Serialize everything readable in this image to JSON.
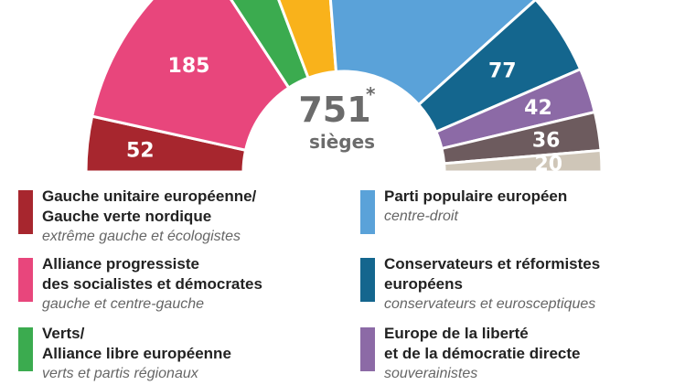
{
  "chart_data": {
    "type": "parliament-hemicycle",
    "total_seats": "751",
    "total_marker": "*",
    "seats_label": "sièges",
    "segments": [
      {
        "key": "gue",
        "seats": 52,
        "label": "52",
        "color": "#a7262e"
      },
      {
        "key": "sd",
        "seats": 185,
        "label": "185",
        "color": "#e8467c"
      },
      {
        "key": "verts",
        "seats": 52,
        "label": "",
        "color": "#3bab4f"
      },
      {
        "key": "alde",
        "seats": 68,
        "label": "",
        "color": "#f9b21b"
      },
      {
        "key": "ppe",
        "seats": 219,
        "label": "",
        "color": "#5aa2d9"
      },
      {
        "key": "ecr",
        "seats": 77,
        "label": "77",
        "color": "#14668e"
      },
      {
        "key": "efdd",
        "seats": 42,
        "label": "42",
        "color": "#8c6aa6"
      },
      {
        "key": "enf",
        "seats": 36,
        "label": "36",
        "color": "#6d5b5e"
      },
      {
        "key": "ni",
        "seats": 20,
        "label": "20",
        "color": "#cfc6b8"
      }
    ]
  },
  "legend": [
    {
      "name": "Gauche unitaire européenne/\nGauche verte nordique",
      "sub": "extrême gauche et écologistes",
      "color": "#a7262e"
    },
    {
      "name": "Alliance progressiste\ndes socialistes et démocrates",
      "sub": "gauche et centre-gauche",
      "color": "#e8467c"
    },
    {
      "name": "Verts/\nAlliance libre européenne",
      "sub": "verts et partis régionaux",
      "color": "#3bab4f"
    },
    {
      "name": "Parti populaire européen",
      "sub": "centre-droit",
      "color": "#5aa2d9"
    },
    {
      "name": "Conservateurs et réformistes\neuropéens",
      "sub": "conservateurs et eurosceptiques",
      "color": "#14668e"
    },
    {
      "name": "Europe de la liberté\net de la démocratie directe",
      "sub": "souverainistes",
      "color": "#8c6aa6"
    }
  ]
}
